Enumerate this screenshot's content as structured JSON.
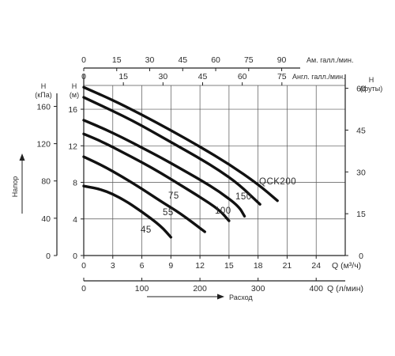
{
  "chart_data": {
    "type": "line",
    "x_unit_label": "Q (м³/ч)",
    "x_ticks": [
      0,
      3,
      6,
      9,
      12,
      15,
      18,
      21,
      24
    ],
    "xlim": [
      0,
      27
    ],
    "y_unit_label": "H\n(м)",
    "y_ticks": [
      0,
      4,
      8,
      12,
      16
    ],
    "ylim": [
      0,
      18.6
    ],
    "secondary_axes": {
      "left_kpa": {
        "title": "H\n(кПа)",
        "ticks": [
          0,
          40,
          80,
          120,
          160
        ]
      },
      "right_feet": {
        "title": "H\n(футы)",
        "ticks": [
          0,
          15,
          30,
          45,
          60
        ]
      },
      "bottom_lmin": {
        "label": "Q (л/мин)",
        "ticks": [
          0,
          100,
          200,
          300,
          400
        ]
      },
      "top_usgal": {
        "label": "Ам. галл./мин.",
        "ticks": [
          0,
          15,
          30,
          45,
          60,
          75,
          90
        ]
      },
      "top_ukgal": {
        "label": "Англ. галл./мин.",
        "ticks": [
          0,
          15,
          30,
          45,
          60,
          75
        ]
      }
    },
    "side_arrow_label": "Напор",
    "bottom_arrow_label": "Расход",
    "series": [
      {
        "name": "45",
        "x": [
          0,
          2,
          4,
          6,
          8,
          9
        ],
        "y": [
          7.6,
          7.2,
          6.2,
          4.8,
          3.2,
          2.0
        ]
      },
      {
        "name": "55",
        "x": [
          0,
          2,
          4,
          6,
          8,
          10,
          12.5
        ],
        "y": [
          10.8,
          9.8,
          8.6,
          7.3,
          5.9,
          4.6,
          2.6
        ]
      },
      {
        "name": "75",
        "x": [
          0,
          2,
          4,
          6,
          8,
          10,
          12,
          14,
          15
        ],
        "y": [
          13.3,
          12.4,
          11.3,
          10.2,
          9.0,
          7.7,
          6.4,
          5.0,
          3.8
        ]
      },
      {
        "name": "100",
        "x": [
          0,
          2,
          4,
          6,
          8,
          10,
          12,
          14,
          16,
          16.6
        ],
        "y": [
          14.8,
          13.9,
          12.9,
          11.8,
          10.7,
          9.5,
          8.3,
          7.0,
          5.4,
          4.3
        ]
      },
      {
        "name": "150",
        "x": [
          0,
          2,
          4,
          6,
          8,
          10,
          12,
          14,
          16,
          18.2
        ],
        "y": [
          17.3,
          16.3,
          15.3,
          14.2,
          13.0,
          11.8,
          10.6,
          9.3,
          7.8,
          5.6
        ]
      },
      {
        "name": "QCK200",
        "x": [
          0,
          3,
          6,
          9,
          12,
          15,
          18,
          20
        ],
        "y": [
          18.4,
          17.0,
          15.4,
          13.7,
          11.9,
          10.0,
          7.8,
          6.0
        ]
      }
    ],
    "grid": true,
    "legend": "none"
  }
}
